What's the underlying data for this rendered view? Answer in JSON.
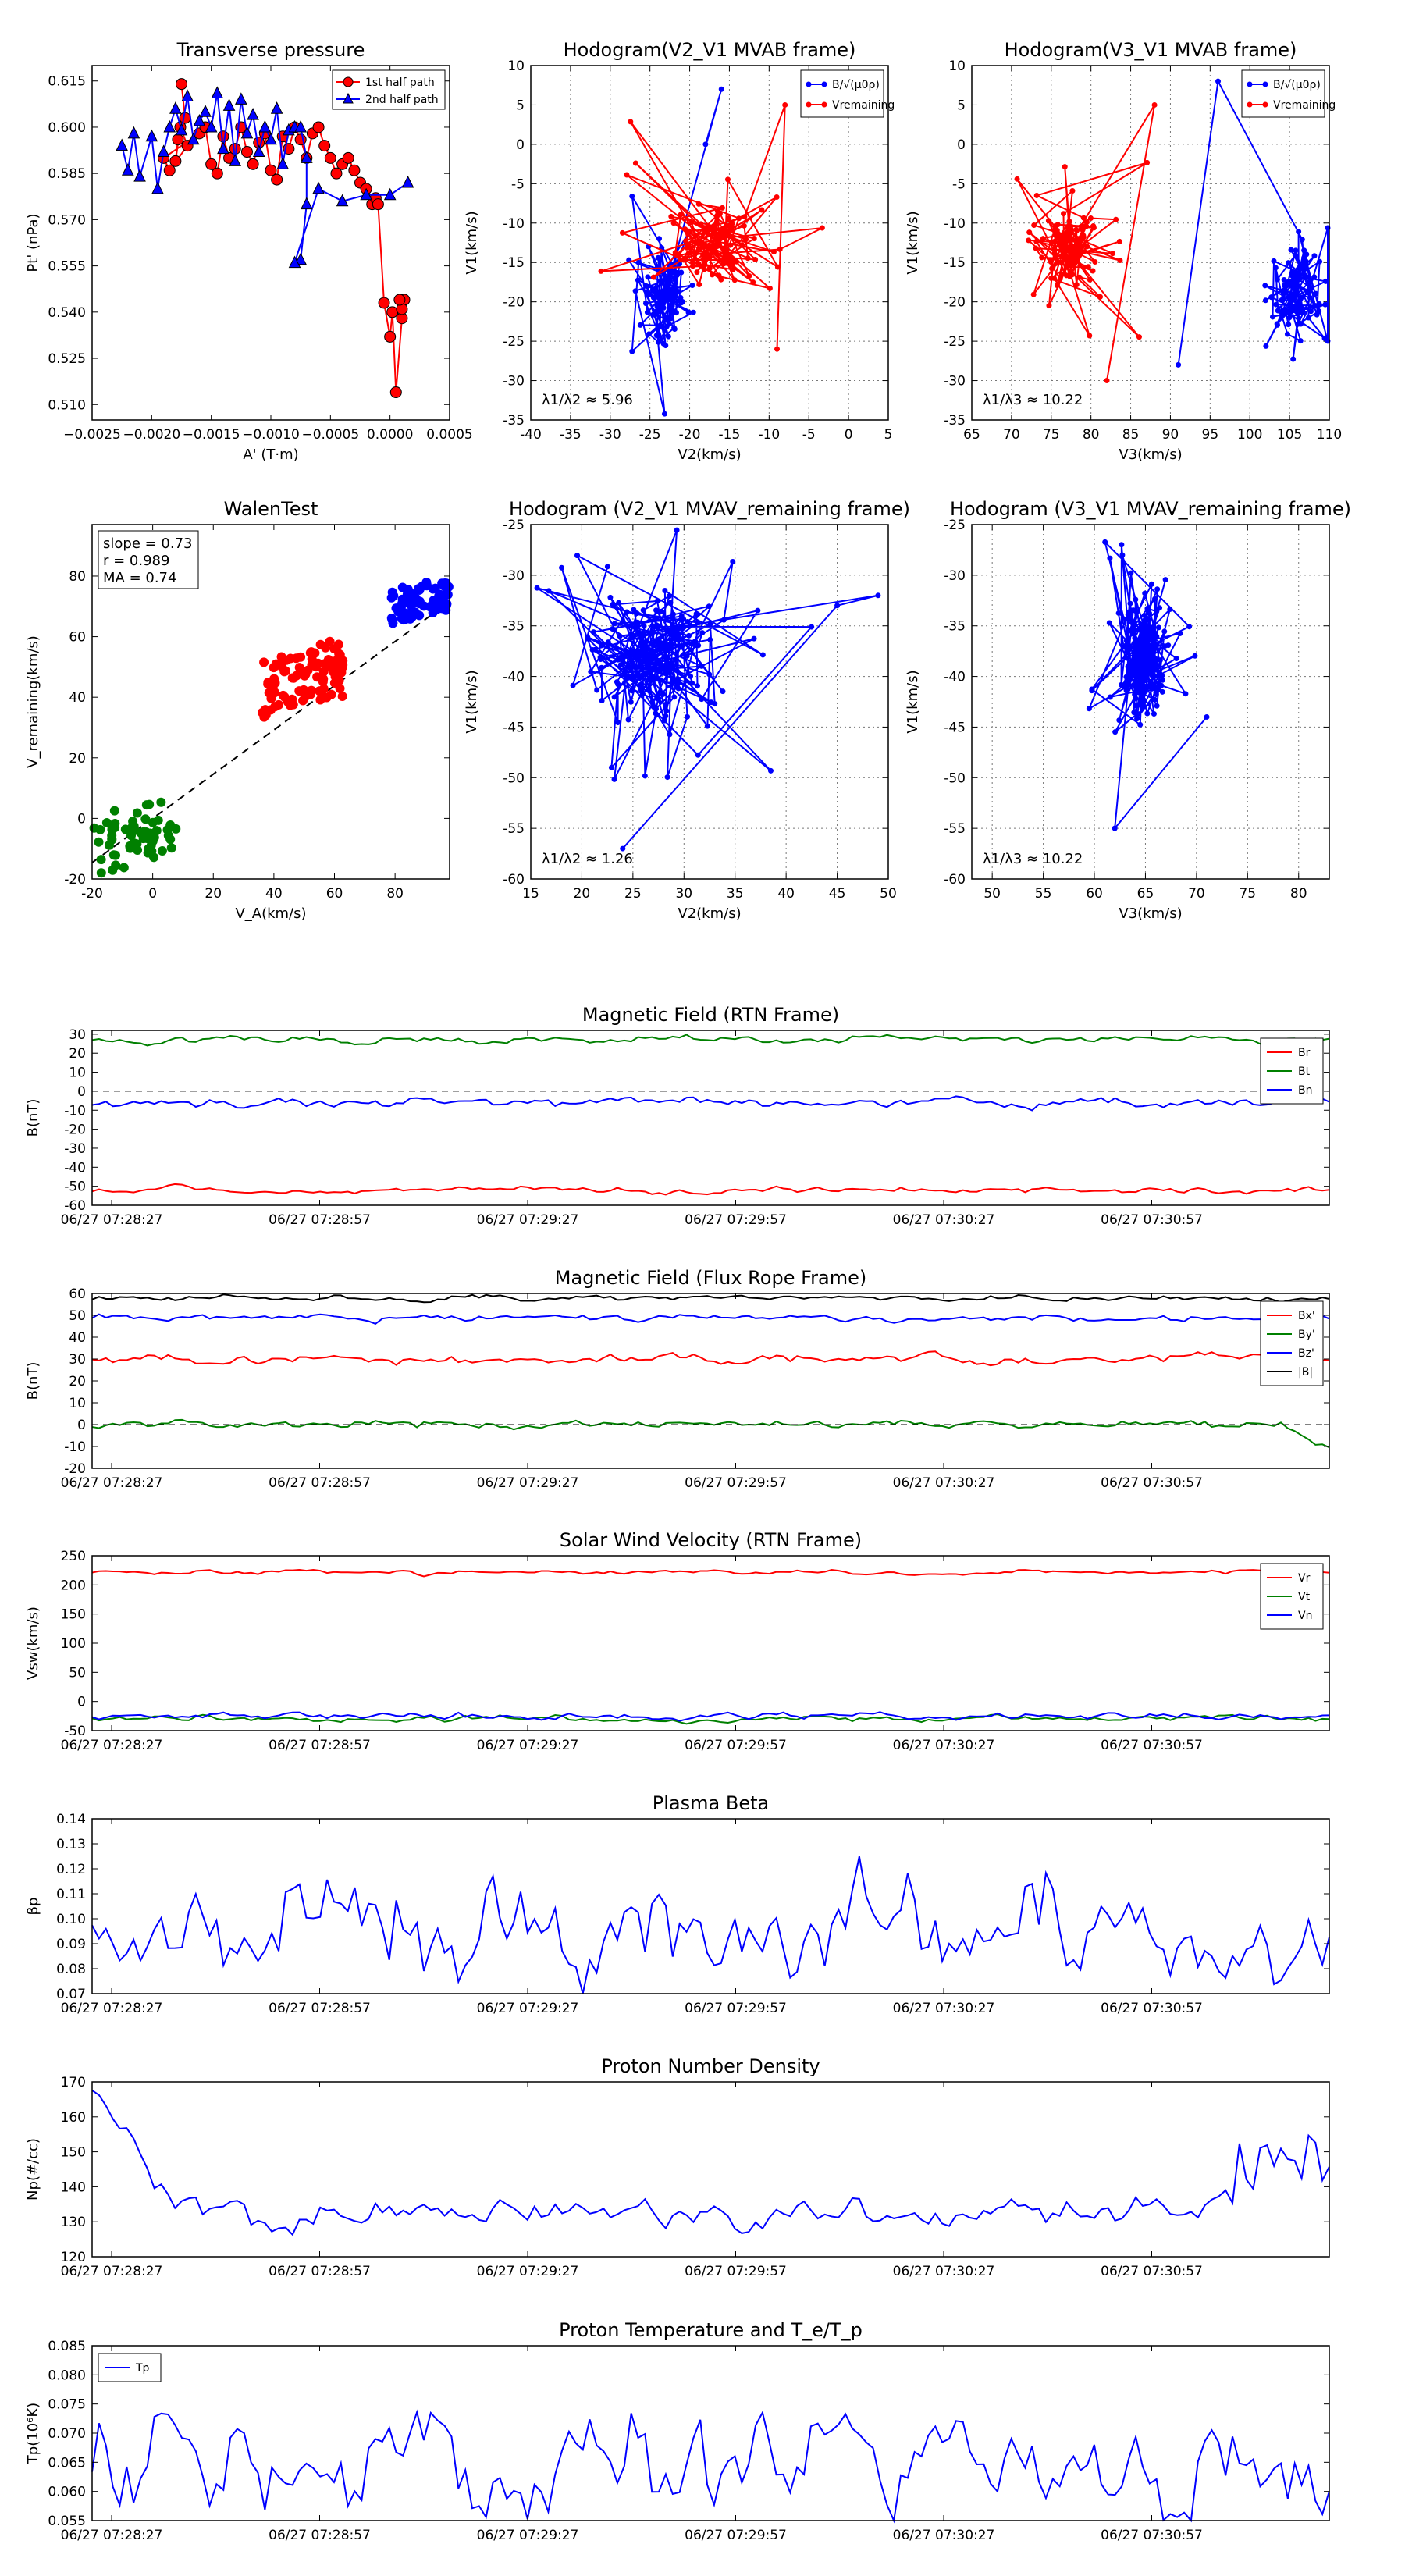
{
  "chart_data": [
    {
      "id": "pt",
      "type": "scatter",
      "title": "Transverse pressure",
      "xlabel": "A' (T·m)",
      "ylabel": "Pt' (nPa)",
      "xlim": [
        -0.0025,
        0.0005
      ],
      "ylim": [
        0.505,
        0.62
      ],
      "xticks": [
        -0.0025,
        -0.002,
        -0.0015,
        -0.001,
        -0.0005,
        0.0,
        0.0005
      ],
      "xtick_labels": [
        "−0.0025",
        "−0.0020",
        "−0.0015",
        "−0.0010",
        "−0.0005",
        "0.0000",
        "0.0005"
      ],
      "yticks": [
        0.51,
        0.525,
        0.54,
        0.555,
        0.57,
        0.585,
        0.6,
        0.615
      ],
      "ytick_labels": [
        "0.510",
        "0.525",
        "0.540",
        "0.555",
        "0.570",
        "0.585",
        "0.600",
        "0.615"
      ],
      "legend": [
        "1st half path",
        "2nd half path"
      ],
      "series": [
        {
          "name": "1st half path",
          "color": "#ff0000",
          "marker": "circle",
          "x": [
            -0.00175,
            -0.00172,
            -0.00178,
            -0.0018,
            -0.00176,
            -0.0017,
            -0.00185,
            -0.0019,
            -0.0016,
            -0.00155,
            -0.0015,
            -0.00145,
            -0.0014,
            -0.00135,
            -0.0013,
            -0.00125,
            -0.0012,
            -0.00115,
            -0.0011,
            -0.00105,
            -0.001,
            -0.00095,
            -0.0009,
            -0.00085,
            -0.0008,
            -0.00075,
            -0.0007,
            -0.00065,
            -0.0006,
            -0.00055,
            -0.0005,
            -0.00045,
            -0.0004,
            -0.00035,
            -0.0003,
            -0.00025,
            -0.0002,
            -0.00015,
            -0.00012,
            -0.0001,
            -5e-05,
            0.0,
            2e-05,
            5e-05,
            0.0001,
            0.00012,
            0.0001,
            8e-05
          ],
          "y": [
            0.614,
            0.603,
            0.596,
            0.589,
            0.6,
            0.594,
            0.586,
            0.59,
            0.598,
            0.6,
            0.588,
            0.585,
            0.597,
            0.59,
            0.593,
            0.6,
            0.592,
            0.588,
            0.595,
            0.598,
            0.586,
            0.583,
            0.597,
            0.593,
            0.6,
            0.596,
            0.59,
            0.598,
            0.6,
            0.594,
            0.59,
            0.585,
            0.588,
            0.59,
            0.586,
            0.582,
            0.58,
            0.575,
            0.577,
            0.575,
            0.543,
            0.532,
            0.54,
            0.514,
            0.538,
            0.544,
            0.541,
            0.544
          ]
        },
        {
          "name": "2nd half path",
          "color": "#0000ff",
          "marker": "triangle",
          "x": [
            -0.00225,
            -0.0022,
            -0.00215,
            -0.0021,
            -0.002,
            -0.00195,
            -0.0019,
            -0.00185,
            -0.0018,
            -0.00175,
            -0.0017,
            -0.00165,
            -0.0016,
            -0.00155,
            -0.0015,
            -0.00145,
            -0.0014,
            -0.00135,
            -0.0013,
            -0.00125,
            -0.0012,
            -0.00115,
            -0.0011,
            -0.00105,
            -0.001,
            -0.00095,
            -0.0009,
            -0.00085,
            -0.0008,
            -0.00075,
            -0.0007,
            -0.0007,
            -0.00075,
            -0.0008,
            -0.0006,
            -0.0004,
            -0.0002,
            0.0,
            0.00015
          ],
          "y": [
            0.594,
            0.586,
            0.598,
            0.584,
            0.597,
            0.58,
            0.592,
            0.6,
            0.606,
            0.599,
            0.61,
            0.596,
            0.602,
            0.605,
            0.6,
            0.611,
            0.593,
            0.607,
            0.589,
            0.609,
            0.598,
            0.604,
            0.592,
            0.6,
            0.596,
            0.606,
            0.588,
            0.599,
            0.6,
            0.6,
            0.59,
            0.575,
            0.557,
            0.556,
            0.58,
            0.576,
            0.578,
            0.578,
            0.582
          ]
        }
      ]
    },
    {
      "id": "hodoB2",
      "type": "line",
      "title": "Hodogram(V2_V1 MVAB frame)",
      "xlabel": "V2(km/s)",
      "ylabel": "V1(km/s)",
      "xlim": [
        -40,
        5
      ],
      "ylim": [
        -35,
        10
      ],
      "xticks": [
        -40,
        -35,
        -30,
        -25,
        -20,
        -15,
        -10,
        -5,
        0,
        5
      ],
      "yticks": [
        -35,
        -30,
        -25,
        -20,
        -15,
        -10,
        -5,
        0,
        5,
        10
      ],
      "annotation": "λ1/λ2 ≈ 5.96",
      "legend": [
        "B/√(μ0ρ)",
        "Vremaining"
      ],
      "series": [
        {
          "name": "B",
          "color": "#0000ff"
        },
        {
          "name": "Vremaining",
          "color": "#ff0000"
        }
      ]
    },
    {
      "id": "hodoB3",
      "type": "line",
      "title": "Hodogram(V3_V1 MVAB frame)",
      "xlabel": "V3(km/s)",
      "ylabel": "V1(km/s)",
      "xlim": [
        65,
        110
      ],
      "ylim": [
        -35,
        10
      ],
      "xticks": [
        65,
        70,
        75,
        80,
        85,
        90,
        95,
        100,
        105,
        110
      ],
      "yticks": [
        -35,
        -30,
        -25,
        -20,
        -15,
        -10,
        -5,
        0,
        5,
        10
      ],
      "annotation": "λ1/λ3 ≈ 10.22",
      "legend": [
        "B/√(μ0ρ)",
        "Vremaining"
      ],
      "series": [
        {
          "name": "B",
          "color": "#0000ff"
        },
        {
          "name": "Vremaining",
          "color": "#ff0000"
        }
      ]
    },
    {
      "id": "walen",
      "type": "scatter",
      "title": "WalenTest",
      "xlabel": "V_A(km/s)",
      "ylabel": "V_remaining(km/s)",
      "xlim": [
        -20,
        98
      ],
      "ylim": [
        -20,
        97
      ],
      "xticks": [
        -20,
        0,
        20,
        40,
        60,
        80
      ],
      "yticks": [
        -20,
        0,
        20,
        40,
        60,
        80
      ],
      "annotation": [
        "slope = 0.73",
        "r = 0.989",
        "MA = 0.74"
      ],
      "slope": 0.73,
      "groups": [
        {
          "color": "#008000",
          "x_range": [
            -20,
            8
          ],
          "y_range": [
            -20,
            9
          ],
          "count": 60
        },
        {
          "color": "#ff0000",
          "x_range": [
            36,
            63
          ],
          "y_range": [
            32,
            60
          ],
          "count": 90
        },
        {
          "color": "#0000ff",
          "x_range": [
            78,
            98
          ],
          "y_range": [
            64,
            80
          ],
          "count": 70
        }
      ]
    },
    {
      "id": "hodoV2",
      "type": "line",
      "title": "Hodogram (V2_V1 MVAV_remaining frame)",
      "xlabel": "V2(km/s)",
      "ylabel": "V1(km/s)",
      "xlim": [
        15,
        50
      ],
      "ylim": [
        -60,
        -25
      ],
      "xticks": [
        15,
        20,
        25,
        30,
        35,
        40,
        45,
        50
      ],
      "yticks": [
        -60,
        -55,
        -50,
        -45,
        -40,
        -35,
        -30,
        -25
      ],
      "annotation": "λ1/λ2 ≈ 1.26",
      "series": [
        {
          "name": "V",
          "color": "#0000ff"
        }
      ]
    },
    {
      "id": "hodoV3",
      "type": "line",
      "title": "Hodogram (V3_V1 MVAV_remaining frame)",
      "xlabel": "V3(km/s)",
      "ylabel": "V1(km/s)",
      "xlim": [
        48,
        83
      ],
      "ylim": [
        -60,
        -25
      ],
      "xticks": [
        50,
        55,
        60,
        65,
        70,
        75,
        80
      ],
      "yticks": [
        -60,
        -55,
        -50,
        -45,
        -40,
        -35,
        -30,
        -25
      ],
      "annotation": "λ1/λ3 ≈ 10.22",
      "series": [
        {
          "name": "V",
          "color": "#0000ff"
        }
      ]
    },
    {
      "id": "bfield",
      "type": "line",
      "title": "Magnetic Field (RTN Frame)",
      "ylabel": "B(nT)",
      "ylim": [
        -60,
        32
      ],
      "yticks": [
        -60,
        -50,
        -40,
        -30,
        -20,
        -10,
        0,
        10,
        20,
        30
      ],
      "xtick_labels": [
        "06/27 07:28:27",
        "06/27 07:28:57",
        "06/27 07:29:27",
        "06/27 07:29:57",
        "06/27 07:30:27",
        "06/27 07:30:57"
      ],
      "legend": [
        "Br",
        "Bt",
        "Bn"
      ],
      "series": [
        {
          "name": "Br",
          "color": "#ff0000",
          "base": -52,
          "noise": 1.0
        },
        {
          "name": "Bt",
          "color": "#008000",
          "base": 27,
          "noise": 1.2
        },
        {
          "name": "Bn",
          "color": "#0000ff",
          "base": -6,
          "noise": 1.5
        }
      ]
    },
    {
      "id": "bflux",
      "type": "line",
      "title": "Magnetic Field (Flux Rope Frame)",
      "ylabel": "B(nT)",
      "ylim": [
        -20,
        60
      ],
      "yticks": [
        -20,
        -10,
        0,
        10,
        20,
        30,
        40,
        50,
        60
      ],
      "xtick_labels": [
        "06/27 07:28:27",
        "06/27 07:28:57",
        "06/27 07:29:27",
        "06/27 07:29:57",
        "06/27 07:30:27",
        "06/27 07:30:57"
      ],
      "legend": [
        "Bx'",
        "By'",
        "Bz'",
        "|B|"
      ],
      "series": [
        {
          "name": "Bx'",
          "color": "#ff0000",
          "base": 30,
          "noise": 1.5
        },
        {
          "name": "By'",
          "color": "#008000",
          "base": 0,
          "noise": 1.2
        },
        {
          "name": "Bz'",
          "color": "#0000ff",
          "base": 49,
          "noise": 1.0
        },
        {
          "name": "|B|",
          "color": "#000000",
          "base": 58,
          "noise": 0.8
        }
      ]
    },
    {
      "id": "vsw",
      "type": "line",
      "title": "Solar Wind Velocity (RTN Frame)",
      "ylabel": "Vsw(km/s)",
      "ylim": [
        -50,
        250
      ],
      "yticks": [
        -50,
        0,
        50,
        100,
        150,
        200,
        250
      ],
      "xtick_labels": [
        "06/27 07:28:27",
        "06/27 07:28:57",
        "06/27 07:29:27",
        "06/27 07:29:57",
        "06/27 07:30:27",
        "06/27 07:30:57"
      ],
      "legend": [
        "Vr",
        "Vt",
        "Vn"
      ],
      "series": [
        {
          "name": "Vr",
          "color": "#ff0000",
          "base": 222,
          "noise": 2.5
        },
        {
          "name": "Vt",
          "color": "#008000",
          "base": -30,
          "noise": 3.5
        },
        {
          "name": "Vn",
          "color": "#0000ff",
          "base": -25,
          "noise": 3.5
        }
      ]
    },
    {
      "id": "beta",
      "type": "line",
      "title": "Plasma Beta",
      "ylabel": "βp",
      "ylim": [
        0.07,
        0.14
      ],
      "yticks": [
        0.07,
        0.08,
        0.09,
        0.1,
        0.11,
        0.12,
        0.13,
        0.14
      ],
      "ytick_labels": [
        "0.07",
        "0.08",
        "0.09",
        "0.10",
        "0.11",
        "0.12",
        "0.13",
        "0.14"
      ],
      "xtick_labels": [
        "06/27 07:28:27",
        "06/27 07:28:57",
        "06/27 07:29:27",
        "06/27 07:29:57",
        "06/27 07:30:27",
        "06/27 07:30:57"
      ],
      "series": [
        {
          "name": "beta",
          "color": "#0000ff",
          "base": 0.095,
          "noise": 0.012
        }
      ]
    },
    {
      "id": "np",
      "type": "line",
      "title": "Proton Number Density",
      "ylabel": "Np(#/cc)",
      "ylim": [
        120,
        170
      ],
      "yticks": [
        120,
        130,
        140,
        150,
        160,
        170
      ],
      "xtick_labels": [
        "06/27 07:28:27",
        "06/27 07:28:57",
        "06/27 07:29:27",
        "06/27 07:29:57",
        "06/27 07:30:27",
        "06/27 07:30:57"
      ],
      "series": [
        {
          "name": "Np",
          "color": "#0000ff",
          "base": 132,
          "noise": 3
        }
      ]
    },
    {
      "id": "tp",
      "type": "line",
      "title": "Proton Temperature and T_e/T_p",
      "ylabel": "Tp(10⁶K)",
      "ylim": [
        0.055,
        0.085
      ],
      "yticks": [
        0.055,
        0.06,
        0.065,
        0.07,
        0.075,
        0.08,
        0.085
      ],
      "ytick_labels": [
        "0.055",
        "0.060",
        "0.065",
        "0.070",
        "0.075",
        "0.080",
        "0.085"
      ],
      "xtick_labels": [
        "06/27 07:28:27",
        "06/27 07:28:57",
        "06/27 07:29:27",
        "06/27 07:29:57",
        "06/27 07:30:27",
        "06/27 07:30:57"
      ],
      "legend": [
        "Tp"
      ],
      "series": [
        {
          "name": "Tp",
          "color": "#0000ff",
          "base": 0.066,
          "noise": 0.005
        }
      ]
    }
  ]
}
